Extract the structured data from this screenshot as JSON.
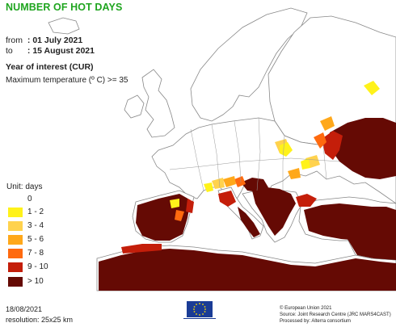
{
  "title": "NUMBER OF HOT DAYS",
  "period": {
    "from_label": "from",
    "from_value": ": 01 July 2021",
    "to_label": "to",
    "to_value": ": 15 August 2021"
  },
  "year_of_interest": "Year of interest (CUR)",
  "criteria": "Maximum temperature (º C) >= 35",
  "legend": {
    "title": "Unit: days",
    "items": [
      {
        "label": "0",
        "color": "#ffffff"
      },
      {
        "label": "1 - 2",
        "color": "#fff21a"
      },
      {
        "label": "3 - 4",
        "color": "#ffd24d"
      },
      {
        "label": "5 - 6",
        "color": "#ffa81a"
      },
      {
        "label": "7 - 8",
        "color": "#ff6a0f"
      },
      {
        "label": "9 - 10",
        "color": "#c41e0a"
      },
      {
        "label": "> 10",
        "color": "#650a04"
      }
    ]
  },
  "footer": {
    "date": "18/08/2021",
    "resolution": "resolution: 25x25 km",
    "copyright": "© European Union 2021",
    "source": "Source: Joint Research Centre (JRC MARS4CAST)",
    "processed": "Processed by: Alterra consortium"
  },
  "logo": {
    "name": "european-commission-logo",
    "text": "European Commission"
  },
  "colors": {
    "title": "#1fa51f",
    "land": "#ffffff",
    "border": "#888888",
    "hot_max": "#650a04"
  }
}
